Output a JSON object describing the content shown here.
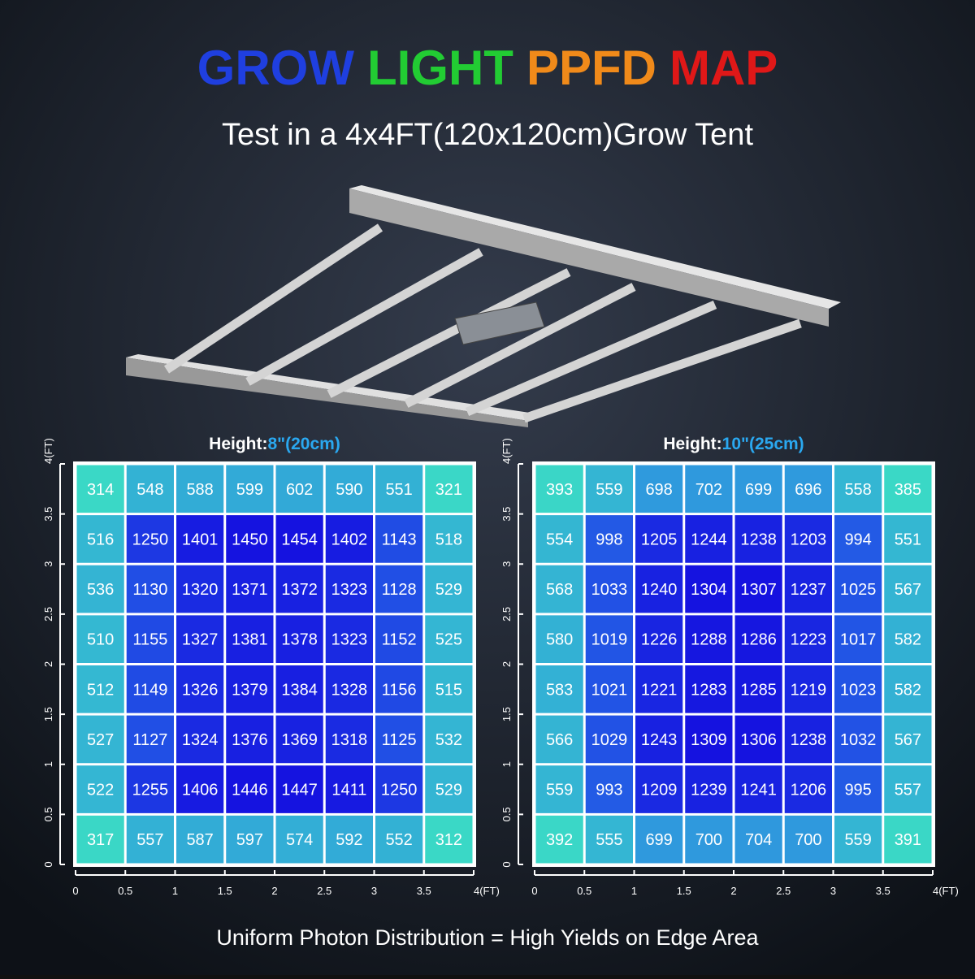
{
  "header": {
    "title_words": [
      {
        "text": "GROW",
        "color": "#1f3fe0"
      },
      {
        "text": "LIGHT",
        "color": "#22cc33"
      },
      {
        "text": "PPFD",
        "color": "#f08a1a"
      },
      {
        "text": "MAP",
        "color": "#e01818"
      }
    ],
    "subtitle": "Test in a 4x4FT(120x120cm)Grow Tent"
  },
  "footer": "Uniform Photon Distribution = High Yields on Edge Area",
  "chart_data": [
    {
      "type": "heatmap",
      "title_label": "Height:",
      "title_value": "8\"(20cm)",
      "xlim": [
        0,
        4
      ],
      "ylim": [
        0,
        4
      ],
      "xticks": [
        0,
        0.5,
        1,
        1.5,
        2,
        2.5,
        3,
        3.5,
        {
          "value": 4,
          "label": "4(FT)"
        }
      ],
      "yticks": [
        0,
        0.5,
        1,
        1.5,
        2,
        2.5,
        3,
        3.5,
        {
          "value": 4,
          "label": "4(FT)"
        }
      ],
      "colorscale": [
        "#3ad8c6",
        "#2a7ce8",
        "#1512e0"
      ],
      "values": [
        [
          314,
          548,
          588,
          599,
          602,
          590,
          551,
          321
        ],
        [
          516,
          1250,
          1401,
          1450,
          1454,
          1402,
          1143,
          518
        ],
        [
          536,
          1130,
          1320,
          1371,
          1372,
          1323,
          1128,
          529
        ],
        [
          510,
          1155,
          1327,
          1381,
          1378,
          1323,
          1152,
          525
        ],
        [
          512,
          1149,
          1326,
          1379,
          1384,
          1328,
          1156,
          515
        ],
        [
          527,
          1127,
          1324,
          1376,
          1369,
          1318,
          1125,
          532
        ],
        [
          522,
          1255,
          1406,
          1446,
          1447,
          1411,
          1250,
          529
        ],
        [
          317,
          557,
          587,
          597,
          574,
          592,
          552,
          312
        ]
      ]
    },
    {
      "type": "heatmap",
      "title_label": "Height:",
      "title_value": "10\"(25cm)",
      "xlim": [
        0,
        4
      ],
      "ylim": [
        0,
        4
      ],
      "xticks": [
        0,
        0.5,
        1,
        1.5,
        2,
        2.5,
        3,
        3.5,
        {
          "value": 4,
          "label": "4(FT)"
        }
      ],
      "yticks": [
        0,
        0.5,
        1,
        1.5,
        2,
        2.5,
        3,
        3.5,
        {
          "value": 4,
          "label": "4(FT)"
        }
      ],
      "colorscale": [
        "#3ad8c6",
        "#2a7ce8",
        "#1512e0"
      ],
      "values": [
        [
          393,
          559,
          698,
          702,
          699,
          696,
          558,
          385
        ],
        [
          554,
          998,
          1205,
          1244,
          1238,
          1203,
          994,
          551
        ],
        [
          568,
          1033,
          1240,
          1304,
          1307,
          1237,
          1025,
          567
        ],
        [
          580,
          1019,
          1226,
          1288,
          1286,
          1223,
          1017,
          582
        ],
        [
          583,
          1021,
          1221,
          1283,
          1285,
          1219,
          1023,
          582
        ],
        [
          566,
          1029,
          1243,
          1309,
          1306,
          1238,
          1032,
          567
        ],
        [
          559,
          993,
          1209,
          1239,
          1241,
          1206,
          995,
          557
        ],
        [
          392,
          555,
          699,
          700,
          704,
          700,
          559,
          391
        ]
      ]
    }
  ]
}
